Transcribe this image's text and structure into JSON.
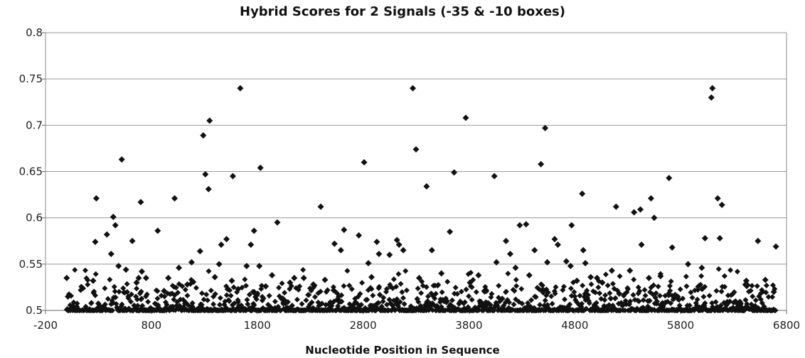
{
  "chart_data": {
    "type": "scatter",
    "title": "Hybrid Scores for 2 Signals (-35 & -10 boxes)",
    "xlabel": "Nucleotide Position in Sequence",
    "ylabel": "",
    "xlim": [
      -200,
      6800
    ],
    "ylim": [
      0.5,
      0.8
    ],
    "xticks": [
      "-200",
      "800",
      "1800",
      "2800",
      "3800",
      "4800",
      "5800",
      "6800"
    ],
    "yticks": [
      "0.5",
      "0.55",
      "0.6",
      "0.65",
      "0.7",
      "0.75",
      "0.8"
    ],
    "grid": "horizontal",
    "marker_color": "#111111",
    "series": [
      {
        "values": [
          {
            "x": 0,
            "y": 0.535
          },
          {
            "x": 12,
            "y": 0.515
          },
          {
            "x": 280,
            "y": 0.621
          },
          {
            "x": 270,
            "y": 0.574
          },
          {
            "x": 250,
            "y": 0.532
          },
          {
            "x": 380,
            "y": 0.582
          },
          {
            "x": 420,
            "y": 0.561
          },
          {
            "x": 440,
            "y": 0.601
          },
          {
            "x": 460,
            "y": 0.592
          },
          {
            "x": 490,
            "y": 0.548
          },
          {
            "x": 520,
            "y": 0.663
          },
          {
            "x": 560,
            "y": 0.544
          },
          {
            "x": 620,
            "y": 0.575
          },
          {
            "x": 660,
            "y": 0.53
          },
          {
            "x": 680,
            "y": 0.535
          },
          {
            "x": 700,
            "y": 0.617
          },
          {
            "x": 710,
            "y": 0.542
          },
          {
            "x": 750,
            "y": 0.535
          },
          {
            "x": 860,
            "y": 0.586
          },
          {
            "x": 920,
            "y": 0.521
          },
          {
            "x": 960,
            "y": 0.535
          },
          {
            "x": 1020,
            "y": 0.621
          },
          {
            "x": 1060,
            "y": 0.546
          },
          {
            "x": 1140,
            "y": 0.528
          },
          {
            "x": 1180,
            "y": 0.552
          },
          {
            "x": 1260,
            "y": 0.564
          },
          {
            "x": 1290,
            "y": 0.689
          },
          {
            "x": 1310,
            "y": 0.647
          },
          {
            "x": 1340,
            "y": 0.631
          },
          {
            "x": 1350,
            "y": 0.705
          },
          {
            "x": 1400,
            "y": 0.536
          },
          {
            "x": 1440,
            "y": 0.55
          },
          {
            "x": 1460,
            "y": 0.571
          },
          {
            "x": 1510,
            "y": 0.577
          },
          {
            "x": 1560,
            "y": 0.532
          },
          {
            "x": 1570,
            "y": 0.645
          },
          {
            "x": 1620,
            "y": 0.523
          },
          {
            "x": 1640,
            "y": 0.74
          },
          {
            "x": 1700,
            "y": 0.548
          },
          {
            "x": 1740,
            "y": 0.571
          },
          {
            "x": 1770,
            "y": 0.586
          },
          {
            "x": 1820,
            "y": 0.548
          },
          {
            "x": 1830,
            "y": 0.654
          },
          {
            "x": 1880,
            "y": 0.526
          },
          {
            "x": 1940,
            "y": 0.538
          },
          {
            "x": 1990,
            "y": 0.595
          },
          {
            "x": 2110,
            "y": 0.53
          },
          {
            "x": 2150,
            "y": 0.535
          },
          {
            "x": 2240,
            "y": 0.535
          },
          {
            "x": 2330,
            "y": 0.528
          },
          {
            "x": 2400,
            "y": 0.612
          },
          {
            "x": 2440,
            "y": 0.533
          },
          {
            "x": 2530,
            "y": 0.572
          },
          {
            "x": 2590,
            "y": 0.565
          },
          {
            "x": 2620,
            "y": 0.587
          },
          {
            "x": 2760,
            "y": 0.581
          },
          {
            "x": 2810,
            "y": 0.66
          },
          {
            "x": 2850,
            "y": 0.551
          },
          {
            "x": 2880,
            "y": 0.536
          },
          {
            "x": 2930,
            "y": 0.574
          },
          {
            "x": 2950,
            "y": 0.561
          },
          {
            "x": 3050,
            "y": 0.56
          },
          {
            "x": 3120,
            "y": 0.576
          },
          {
            "x": 3140,
            "y": 0.571
          },
          {
            "x": 3180,
            "y": 0.565
          },
          {
            "x": 3270,
            "y": 0.74
          },
          {
            "x": 3300,
            "y": 0.674
          },
          {
            "x": 3330,
            "y": 0.535
          },
          {
            "x": 3400,
            "y": 0.634
          },
          {
            "x": 3450,
            "y": 0.565
          },
          {
            "x": 3540,
            "y": 0.54
          },
          {
            "x": 3620,
            "y": 0.585
          },
          {
            "x": 3660,
            "y": 0.649
          },
          {
            "x": 3770,
            "y": 0.708
          },
          {
            "x": 3810,
            "y": 0.53
          },
          {
            "x": 3890,
            "y": 0.538
          },
          {
            "x": 3960,
            "y": 0.522
          },
          {
            "x": 4040,
            "y": 0.645
          },
          {
            "x": 4060,
            "y": 0.552
          },
          {
            "x": 4150,
            "y": 0.575
          },
          {
            "x": 4190,
            "y": 0.561
          },
          {
            "x": 4240,
            "y": 0.546
          },
          {
            "x": 4280,
            "y": 0.592
          },
          {
            "x": 4340,
            "y": 0.593
          },
          {
            "x": 4370,
            "y": 0.538
          },
          {
            "x": 4420,
            "y": 0.565
          },
          {
            "x": 4480,
            "y": 0.658
          },
          {
            "x": 4520,
            "y": 0.697
          },
          {
            "x": 4540,
            "y": 0.552
          },
          {
            "x": 4610,
            "y": 0.577
          },
          {
            "x": 4640,
            "y": 0.571
          },
          {
            "x": 4720,
            "y": 0.553
          },
          {
            "x": 4760,
            "y": 0.548
          },
          {
            "x": 4770,
            "y": 0.592
          },
          {
            "x": 4820,
            "y": 0.532
          },
          {
            "x": 4870,
            "y": 0.626
          },
          {
            "x": 4880,
            "y": 0.565
          },
          {
            "x": 4900,
            "y": 0.551
          },
          {
            "x": 4950,
            "y": 0.536
          },
          {
            "x": 5010,
            "y": 0.535
          },
          {
            "x": 5060,
            "y": 0.53
          },
          {
            "x": 5150,
            "y": 0.543
          },
          {
            "x": 5190,
            "y": 0.612
          },
          {
            "x": 5220,
            "y": 0.518
          },
          {
            "x": 5320,
            "y": 0.543
          },
          {
            "x": 5360,
            "y": 0.606
          },
          {
            "x": 5420,
            "y": 0.609
          },
          {
            "x": 5430,
            "y": 0.571
          },
          {
            "x": 5500,
            "y": 0.535
          },
          {
            "x": 5520,
            "y": 0.621
          },
          {
            "x": 5550,
            "y": 0.6
          },
          {
            "x": 5610,
            "y": 0.537
          },
          {
            "x": 5690,
            "y": 0.643
          },
          {
            "x": 5720,
            "y": 0.568
          },
          {
            "x": 5870,
            "y": 0.55
          },
          {
            "x": 6000,
            "y": 0.546
          },
          {
            "x": 6030,
            "y": 0.578
          },
          {
            "x": 6090,
            "y": 0.73
          },
          {
            "x": 6100,
            "y": 0.74
          },
          {
            "x": 6150,
            "y": 0.621
          },
          {
            "x": 6170,
            "y": 0.578
          },
          {
            "x": 6190,
            "y": 0.614
          },
          {
            "x": 6420,
            "y": 0.532
          },
          {
            "x": 6530,
            "y": 0.575
          },
          {
            "x": 6600,
            "y": 0.533
          },
          {
            "x": 6700,
            "y": 0.569
          },
          {
            "x": 6680,
            "y": 0.52
          }
        ]
      }
    ]
  }
}
